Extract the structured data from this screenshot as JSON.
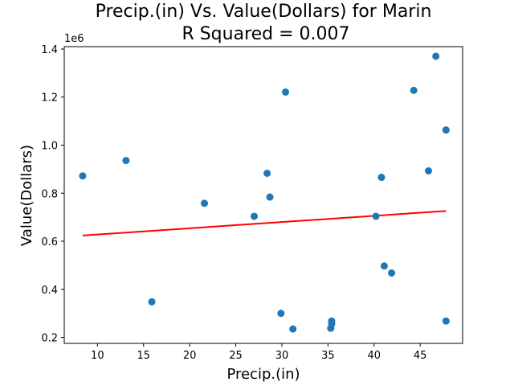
{
  "chart_data": {
    "type": "scatter",
    "title_line1": "Precip.(in) Vs. Value(Dollars) for Marin",
    "title_line2": "R Squared =  0.007",
    "xlabel": "Precip.(in)",
    "ylabel": "Value(Dollars)",
    "y_offset_label": "1e6",
    "xlim": [
      6.4,
      49.6
    ],
    "ylim": [
      0.175,
      1.41
    ],
    "x_ticks": [
      10,
      15,
      20,
      25,
      30,
      35,
      40,
      45
    ],
    "x_tick_labels": [
      "10",
      "15",
      "20",
      "25",
      "30",
      "35",
      "40",
      "45"
    ],
    "y_ticks": [
      0.2,
      0.4,
      0.6,
      0.8,
      1.0,
      1.2,
      1.4
    ],
    "y_tick_labels": [
      "0.2",
      "0.4",
      "0.6",
      "0.8",
      "1.0",
      "1.2",
      "1.4"
    ],
    "y_scale_note": "values in units of 1e6 dollars",
    "grid": false,
    "points": [
      {
        "x": 8.4,
        "y": 0.872
      },
      {
        "x": 13.1,
        "y": 0.936
      },
      {
        "x": 15.9,
        "y": 0.348
      },
      {
        "x": 21.6,
        "y": 0.758
      },
      {
        "x": 27.0,
        "y": 0.704
      },
      {
        "x": 28.4,
        "y": 0.883
      },
      {
        "x": 28.7,
        "y": 0.784
      },
      {
        "x": 29.9,
        "y": 0.3
      },
      {
        "x": 30.4,
        "y": 1.221
      },
      {
        "x": 31.2,
        "y": 0.235
      },
      {
        "x": 35.3,
        "y": 0.238
      },
      {
        "x": 35.4,
        "y": 0.256
      },
      {
        "x": 35.4,
        "y": 0.268
      },
      {
        "x": 40.2,
        "y": 0.704
      },
      {
        "x": 40.8,
        "y": 0.866
      },
      {
        "x": 41.1,
        "y": 0.497
      },
      {
        "x": 41.9,
        "y": 0.468
      },
      {
        "x": 44.3,
        "y": 1.228
      },
      {
        "x": 45.9,
        "y": 0.893
      },
      {
        "x": 46.7,
        "y": 1.37
      },
      {
        "x": 47.8,
        "y": 1.063
      },
      {
        "x": 47.8,
        "y": 0.268
      }
    ],
    "trendline": {
      "x": [
        8.4,
        47.8
      ],
      "y": [
        0.624,
        0.726
      ]
    },
    "colors": {
      "points": "#1f77b4",
      "trendline": "#ff0000",
      "axes": "#000000"
    }
  }
}
